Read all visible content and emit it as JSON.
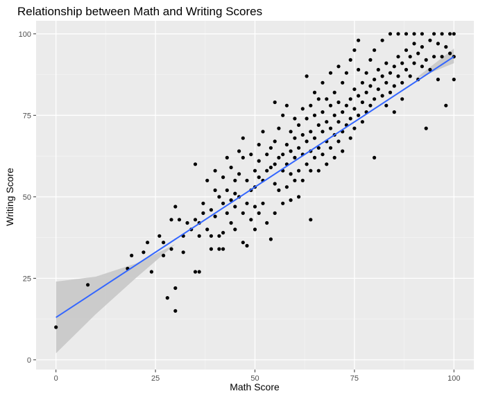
{
  "chart_data": {
    "type": "scatter",
    "title": "Relationship between Math and Writing Scores",
    "xlabel": "Math Score",
    "ylabel": "Writing Score",
    "xlim": [
      -5,
      105
    ],
    "ylim": [
      -3,
      104
    ],
    "x_ticks": [
      0,
      25,
      50,
      75,
      100
    ],
    "y_ticks": [
      0,
      25,
      50,
      75,
      100
    ],
    "grid": true,
    "legend": "none",
    "colors": {
      "panel_background": "#ebebeb",
      "grid_major": "#ffffff",
      "grid_minor": "#f5f5f5",
      "points": "#000000",
      "fit_line": "#3366ff",
      "confidence_band": "#c8c8c8"
    },
    "series": [
      {
        "type": "scatter",
        "points": [
          [
            0,
            10
          ],
          [
            8,
            23
          ],
          [
            18,
            28
          ],
          [
            19,
            32
          ],
          [
            22,
            33
          ],
          [
            23,
            36
          ],
          [
            24,
            27
          ],
          [
            26,
            38
          ],
          [
            27,
            36
          ],
          [
            27,
            32
          ],
          [
            28,
            19
          ],
          [
            29,
            34
          ],
          [
            29,
            43
          ],
          [
            30,
            47
          ],
          [
            30,
            22
          ],
          [
            30,
            15
          ],
          [
            31,
            43
          ],
          [
            32,
            38
          ],
          [
            32,
            33
          ],
          [
            33,
            42
          ],
          [
            34,
            40
          ],
          [
            35,
            43
          ],
          [
            35,
            27
          ],
          [
            35,
            60
          ],
          [
            36,
            27
          ],
          [
            36,
            42
          ],
          [
            36,
            38
          ],
          [
            37,
            45
          ],
          [
            37,
            48
          ],
          [
            38,
            55
          ],
          [
            38,
            40
          ],
          [
            39,
            46
          ],
          [
            39,
            38
          ],
          [
            39,
            34
          ],
          [
            40,
            44
          ],
          [
            40,
            52
          ],
          [
            40,
            58
          ],
          [
            41,
            50
          ],
          [
            41,
            38
          ],
          [
            41,
            34
          ],
          [
            42,
            48
          ],
          [
            42,
            56
          ],
          [
            42,
            39
          ],
          [
            42,
            34
          ],
          [
            43,
            52
          ],
          [
            43,
            62
          ],
          [
            43,
            45
          ],
          [
            44,
            59
          ],
          [
            44,
            49
          ],
          [
            44,
            42
          ],
          [
            45,
            51
          ],
          [
            45,
            55
          ],
          [
            45,
            47
          ],
          [
            45,
            40
          ],
          [
            46,
            57
          ],
          [
            46,
            64
          ],
          [
            46,
            50
          ],
          [
            47,
            62
          ],
          [
            47,
            45
          ],
          [
            47,
            36
          ],
          [
            47,
            68
          ],
          [
            48,
            55
          ],
          [
            48,
            48
          ],
          [
            48,
            35
          ],
          [
            49,
            63
          ],
          [
            49,
            52
          ],
          [
            49,
            43
          ],
          [
            50,
            58
          ],
          [
            50,
            53
          ],
          [
            50,
            47
          ],
          [
            50,
            40
          ],
          [
            51,
            61
          ],
          [
            51,
            56
          ],
          [
            51,
            66
          ],
          [
            51,
            45
          ],
          [
            52,
            55
          ],
          [
            52,
            48
          ],
          [
            52,
            70
          ],
          [
            53,
            63
          ],
          [
            53,
            58
          ],
          [
            53,
            42
          ],
          [
            54,
            59
          ],
          [
            54,
            65
          ],
          [
            54,
            37
          ],
          [
            55,
            60
          ],
          [
            55,
            67
          ],
          [
            55,
            54
          ],
          [
            55,
            79
          ],
          [
            55,
            45
          ],
          [
            56,
            62
          ],
          [
            56,
            71
          ],
          [
            56,
            52
          ],
          [
            57,
            63
          ],
          [
            57,
            58
          ],
          [
            57,
            75
          ],
          [
            57,
            48
          ],
          [
            58,
            66
          ],
          [
            58,
            60
          ],
          [
            58,
            53
          ],
          [
            58,
            78
          ],
          [
            59,
            64
          ],
          [
            59,
            70
          ],
          [
            59,
            57
          ],
          [
            59,
            49
          ],
          [
            60,
            68
          ],
          [
            60,
            62
          ],
          [
            60,
            74
          ],
          [
            60,
            55
          ],
          [
            61,
            65
          ],
          [
            61,
            72
          ],
          [
            61,
            58
          ],
          [
            61,
            50
          ],
          [
            62,
            69
          ],
          [
            62,
            63
          ],
          [
            62,
            77
          ],
          [
            62,
            55
          ],
          [
            63,
            67
          ],
          [
            63,
            74
          ],
          [
            63,
            60
          ],
          [
            63,
            87
          ],
          [
            64,
            70
          ],
          [
            64,
            64
          ],
          [
            64,
            78
          ],
          [
            64,
            58
          ],
          [
            64,
            43
          ],
          [
            65,
            68
          ],
          [
            65,
            75
          ],
          [
            65,
            62
          ],
          [
            65,
            82
          ],
          [
            66,
            72
          ],
          [
            66,
            65
          ],
          [
            66,
            80
          ],
          [
            66,
            58
          ],
          [
            67,
            70
          ],
          [
            67,
            76
          ],
          [
            67,
            63
          ],
          [
            67,
            85
          ],
          [
            68,
            73
          ],
          [
            68,
            67
          ],
          [
            68,
            80
          ],
          [
            68,
            60
          ],
          [
            69,
            71
          ],
          [
            69,
            78
          ],
          [
            69,
            65
          ],
          [
            69,
            88
          ],
          [
            70,
            75
          ],
          [
            70,
            69
          ],
          [
            70,
            82
          ],
          [
            70,
            62
          ],
          [
            71,
            73
          ],
          [
            71,
            79
          ],
          [
            71,
            67
          ],
          [
            71,
            90
          ],
          [
            72,
            76
          ],
          [
            72,
            70
          ],
          [
            72,
            85
          ],
          [
            72,
            64
          ],
          [
            73,
            78
          ],
          [
            73,
            72
          ],
          [
            73,
            88
          ],
          [
            74,
            80
          ],
          [
            74,
            74
          ],
          [
            74,
            68
          ],
          [
            74,
            92
          ],
          [
            75,
            77
          ],
          [
            75,
            83
          ],
          [
            75,
            71
          ],
          [
            75,
            95
          ],
          [
            76,
            81
          ],
          [
            76,
            75
          ],
          [
            76,
            89
          ],
          [
            76,
            98
          ],
          [
            77,
            79
          ],
          [
            77,
            85
          ],
          [
            77,
            73
          ],
          [
            78,
            82
          ],
          [
            78,
            88
          ],
          [
            78,
            76
          ],
          [
            79,
            84
          ],
          [
            79,
            78
          ],
          [
            79,
            92
          ],
          [
            80,
            86
          ],
          [
            80,
            80
          ],
          [
            80,
            95
          ],
          [
            80,
            62
          ],
          [
            81,
            83
          ],
          [
            81,
            89
          ],
          [
            82,
            87
          ],
          [
            82,
            81
          ],
          [
            82,
            98
          ],
          [
            83,
            85
          ],
          [
            83,
            91
          ],
          [
            83,
            78
          ],
          [
            84,
            88
          ],
          [
            84,
            82
          ],
          [
            84,
            100
          ],
          [
            85,
            90
          ],
          [
            85,
            84
          ],
          [
            85,
            76
          ],
          [
            86,
            87
          ],
          [
            86,
            93
          ],
          [
            86,
            100
          ],
          [
            87,
            91
          ],
          [
            87,
            85
          ],
          [
            87,
            80
          ],
          [
            88,
            89
          ],
          [
            88,
            95
          ],
          [
            88,
            100
          ],
          [
            89,
            93
          ],
          [
            89,
            87
          ],
          [
            90,
            91
          ],
          [
            90,
            97
          ],
          [
            90,
            100
          ],
          [
            91,
            94
          ],
          [
            91,
            86
          ],
          [
            92,
            96
          ],
          [
            92,
            90
          ],
          [
            92,
            100
          ],
          [
            93,
            92
          ],
          [
            93,
            71
          ],
          [
            94,
            98
          ],
          [
            94,
            89
          ],
          [
            95,
            100
          ],
          [
            95,
            93
          ],
          [
            96,
            97
          ],
          [
            96,
            86
          ],
          [
            97,
            100
          ],
          [
            97,
            93
          ],
          [
            98,
            96
          ],
          [
            98,
            78
          ],
          [
            99,
            100
          ],
          [
            99,
            94
          ],
          [
            100,
            100
          ],
          [
            100,
            93
          ],
          [
            100,
            86
          ]
        ]
      },
      {
        "type": "line",
        "method": "lm",
        "points": [
          [
            0,
            13
          ],
          [
            100,
            93
          ]
        ],
        "ci": {
          "x": [
            0,
            10,
            20,
            30,
            40,
            50,
            60,
            70,
            80,
            90,
            100
          ],
          "lower": [
            2,
            14,
            25,
            35.5,
            45.5,
            54.5,
            62.5,
            70.5,
            78.5,
            86,
            91
          ],
          "upper": [
            24,
            25.5,
            29.5,
            35.5,
            45.5,
            54.5,
            62.5,
            70.5,
            78.5,
            86,
            95.5
          ]
        }
      }
    ]
  }
}
